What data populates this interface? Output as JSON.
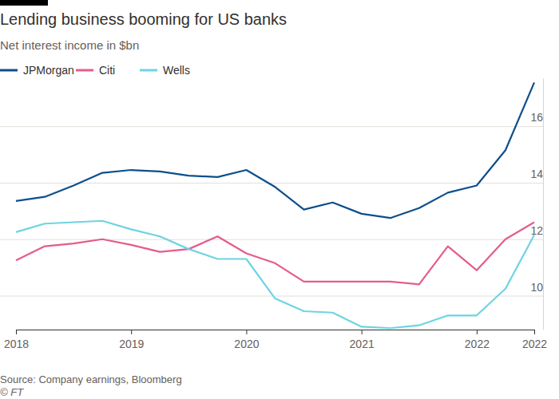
{
  "chart_data": {
    "type": "line",
    "title": "Lending business booming for US banks",
    "subtitle": "Net interest income in $bn",
    "categories": [
      "2018",
      null,
      null,
      null,
      "2019",
      null,
      null,
      null,
      "2020",
      null,
      null,
      null,
      "2021",
      null,
      null,
      null,
      "2022",
      null,
      "2022"
    ],
    "series": [
      {
        "name": "JPMorgan",
        "color": "#0d4f8b",
        "values": [
          13.35,
          13.5,
          13.9,
          14.35,
          14.45,
          14.4,
          14.25,
          14.2,
          14.45,
          13.85,
          13.05,
          13.3,
          12.9,
          12.75,
          13.1,
          13.65,
          13.9,
          15.15,
          17.55
        ]
      },
      {
        "name": "Citi",
        "color": "#e55b8f",
        "values": [
          11.25,
          11.75,
          11.85,
          12.0,
          11.8,
          11.55,
          11.65,
          12.1,
          11.5,
          11.15,
          10.5,
          10.5,
          10.5,
          10.5,
          10.4,
          11.75,
          10.9,
          12.0,
          12.6
        ]
      },
      {
        "name": "Wells",
        "color": "#6dd4e3",
        "values": [
          12.25,
          12.55,
          12.6,
          12.65,
          12.35,
          12.1,
          11.65,
          11.3,
          11.3,
          9.9,
          9.45,
          9.4,
          8.9,
          8.85,
          8.95,
          9.3,
          9.3,
          10.25,
          12.15
        ]
      }
    ],
    "ylim": [
      8.8,
      17.7
    ],
    "yticks": [
      10,
      12,
      14,
      16
    ],
    "grid": true,
    "legend": "top-left",
    "source": "Source: Company earnings, Bloomberg",
    "credit": "© FT"
  }
}
